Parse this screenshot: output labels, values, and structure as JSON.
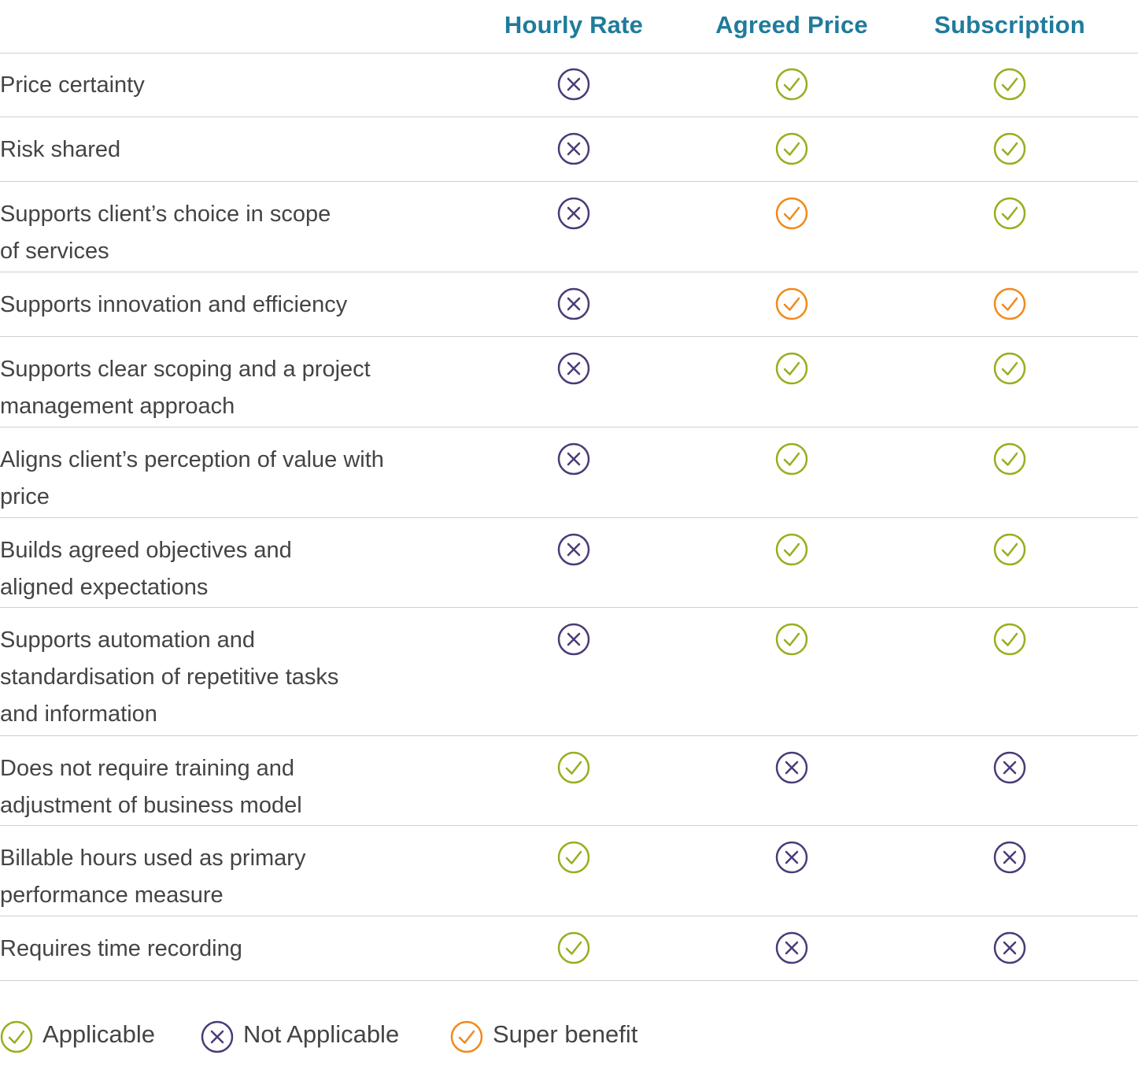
{
  "columns": [
    "Hourly Rate",
    "Agreed Price",
    "Subscription"
  ],
  "rows": [
    {
      "label": "Price certainty",
      "marks": [
        "not_applicable",
        "applicable",
        "applicable"
      ]
    },
    {
      "label": "Risk shared",
      "marks": [
        "not_applicable",
        "applicable",
        "applicable"
      ]
    },
    {
      "label": "Supports client’s choice in scope\nof services",
      "marks": [
        "not_applicable",
        "super_benefit",
        "applicable"
      ]
    },
    {
      "label": "Supports innovation and efficiency",
      "marks": [
        "not_applicable",
        "super_benefit",
        "super_benefit"
      ]
    },
    {
      "label": "Supports clear scoping and a project\nmanagement approach",
      "marks": [
        "not_applicable",
        "applicable",
        "applicable"
      ]
    },
    {
      "label": "Aligns client’s perception of value with\nprice",
      "marks": [
        "not_applicable",
        "applicable",
        "applicable"
      ]
    },
    {
      "label": "Builds agreed objectives and\naligned expectations",
      "marks": [
        "not_applicable",
        "applicable",
        "applicable"
      ]
    },
    {
      "label": "Supports automation and\nstandardisation of repetitive tasks\nand information",
      "marks": [
        "not_applicable",
        "applicable",
        "applicable"
      ]
    },
    {
      "label": "Does not require training and\nadjustment of business model",
      "marks": [
        "applicable",
        "not_applicable",
        "not_applicable"
      ]
    },
    {
      "label": "Billable hours used as primary\nperformance measure",
      "marks": [
        "applicable",
        "not_applicable",
        "not_applicable"
      ]
    },
    {
      "label": "Requires time recording",
      "marks": [
        "applicable",
        "not_applicable",
        "not_applicable"
      ]
    }
  ],
  "legend": [
    {
      "type": "applicable",
      "label": "Applicable"
    },
    {
      "type": "not_applicable",
      "label": "Not Applicable"
    },
    {
      "type": "super_benefit",
      "label": "Super benefit"
    }
  ],
  "colors": {
    "header_text": "#1f7b9c",
    "applicable": "#9aad1f",
    "not_applicable": "#4b3b78",
    "super_benefit": "#f08a1c"
  },
  "icons": {
    "applicable": "check-circle-icon",
    "not_applicable": "x-circle-icon",
    "super_benefit": "check-circle-icon"
  }
}
